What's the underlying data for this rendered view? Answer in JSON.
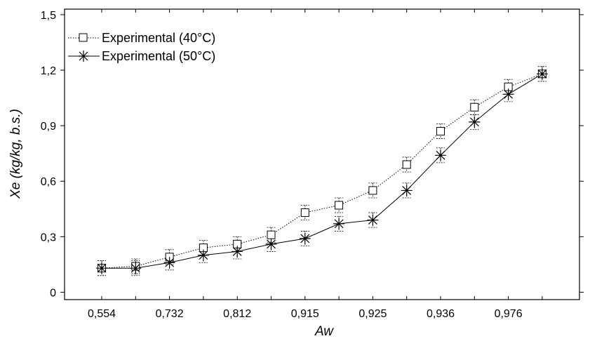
{
  "chart_data": {
    "type": "line",
    "xlabel": "Aw",
    "ylabel": "Xe (kg/kg, b.s.)",
    "x_tick_labels": [
      "0,554",
      "0,732",
      "0,812",
      "0,915",
      "0,925",
      "0,936",
      "0,976"
    ],
    "y_tick_labels": [
      "0",
      "0,3",
      "0,6",
      "0,9",
      "1,2",
      "1,5"
    ],
    "y_ticks": [
      0,
      0.3,
      0.6,
      0.9,
      1.2,
      1.5
    ],
    "ylim": [
      -0.04,
      1.53
    ],
    "n_points": 14,
    "grid": false,
    "legend_position": "top-left",
    "series": [
      {
        "name": "Experimental (40°C)",
        "marker": "square",
        "line_style": "dotted",
        "values": [
          0.13,
          0.14,
          0.19,
          0.24,
          0.26,
          0.31,
          0.43,
          0.47,
          0.55,
          0.69,
          0.87,
          1.0,
          1.11,
          1.18
        ],
        "errors": [
          0.04,
          0.04,
          0.04,
          0.04,
          0.04,
          0.04,
          0.04,
          0.04,
          0.04,
          0.04,
          0.04,
          0.04,
          0.04,
          0.04
        ]
      },
      {
        "name": "Experimental (50°C)",
        "marker": "asterisk",
        "line_style": "solid",
        "values": [
          0.13,
          0.13,
          0.16,
          0.2,
          0.22,
          0.26,
          0.29,
          0.37,
          0.39,
          0.55,
          0.74,
          0.92,
          1.07,
          1.18
        ],
        "errors": [
          0.04,
          0.04,
          0.04,
          0.04,
          0.04,
          0.04,
          0.04,
          0.04,
          0.04,
          0.04,
          0.04,
          0.04,
          0.04,
          0.04
        ]
      }
    ]
  }
}
